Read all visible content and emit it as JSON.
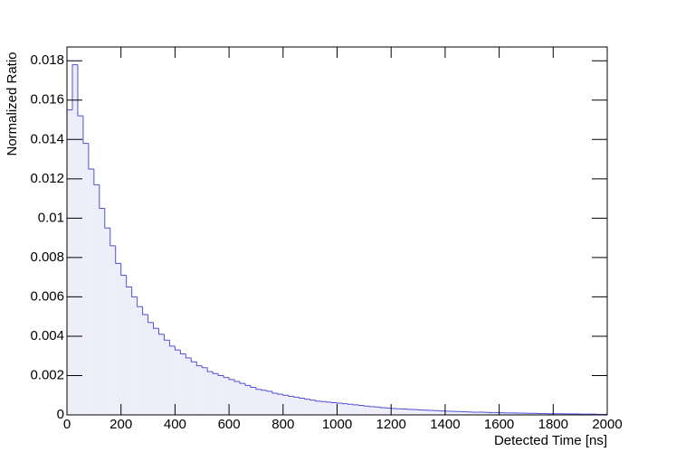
{
  "chart_data": {
    "type": "histogram",
    "xlabel": "Detected Time [ns]",
    "ylabel": "Normalized Ratio",
    "fill_color": "#eeeefa",
    "line_color": "#5050d8",
    "bins": [
      0,
      20,
      40,
      60,
      80,
      100,
      120,
      140,
      160,
      180,
      200,
      220,
      240,
      260,
      280,
      300,
      320,
      340,
      360,
      380,
      400,
      420,
      440,
      460,
      480,
      500,
      520,
      540,
      560,
      580,
      600,
      620,
      640,
      660,
      680,
      700,
      720,
      740,
      760,
      780,
      800,
      820,
      840,
      860,
      880,
      900,
      920,
      940,
      960,
      980,
      1000,
      1020,
      1040,
      1060,
      1080,
      1100,
      1120,
      1140,
      1160,
      1180,
      1200,
      1220,
      1240,
      1260,
      1280,
      1300,
      1320,
      1340,
      1360,
      1380,
      1400,
      1420,
      1440,
      1460,
      1480,
      1500,
      1520,
      1540,
      1560,
      1580,
      1600,
      1620,
      1640,
      1660,
      1680,
      1700,
      1720,
      1740,
      1760,
      1780,
      1800,
      1820,
      1840,
      1860,
      1880,
      1900,
      1920,
      1940,
      1960,
      1980,
      2000
    ],
    "values": [
      0.0155,
      0.0178,
      0.0152,
      0.0138,
      0.0125,
      0.0117,
      0.0105,
      0.0095,
      0.0086,
      0.0077,
      0.0071,
      0.0065,
      0.006,
      0.0055,
      0.0051,
      0.0047,
      0.0044,
      0.0041,
      0.0038,
      0.0035,
      0.0033,
      0.0031,
      0.0029,
      0.0027,
      0.0025,
      0.0024,
      0.0022,
      0.0021,
      0.002,
      0.0019,
      0.0018,
      0.0017,
      0.0016,
      0.0015,
      0.0014,
      0.0013,
      0.00125,
      0.0012,
      0.0011,
      0.00105,
      0.001,
      0.00095,
      0.0009,
      0.00085,
      0.0008,
      0.00075,
      0.0007,
      0.00068,
      0.00065,
      0.00062,
      0.0006,
      0.00057,
      0.00054,
      0.00051,
      0.00048,
      0.00045,
      0.00042,
      0.0004,
      0.00037,
      0.00035,
      0.00033,
      0.00031,
      0.0003,
      0.00028,
      0.00027,
      0.00025,
      0.00024,
      0.00023,
      0.00022,
      0.0002,
      0.00019,
      0.00018,
      0.00017,
      0.00016,
      0.00015,
      0.00014,
      0.00014,
      0.00013,
      0.00012,
      0.00012,
      0.00011,
      0.0001,
      0.0001,
      9e-05,
      9e-05,
      8e-05,
      8e-05,
      7e-05,
      7e-05,
      6e-05,
      6e-05,
      6e-05,
      5e-05,
      5e-05,
      5e-05,
      4e-05,
      4e-05,
      4e-05,
      3e-05,
      3e-05
    ],
    "xlim": [
      0,
      2000
    ],
    "xticks": [
      0,
      200,
      400,
      600,
      800,
      1000,
      1200,
      1400,
      1600,
      1800,
      2000
    ],
    "ylim": [
      0,
      0.0187
    ],
    "yticks": [
      0,
      0.002,
      0.004,
      0.006,
      0.008,
      0.01,
      0.012,
      0.014,
      0.016,
      0.018
    ]
  }
}
